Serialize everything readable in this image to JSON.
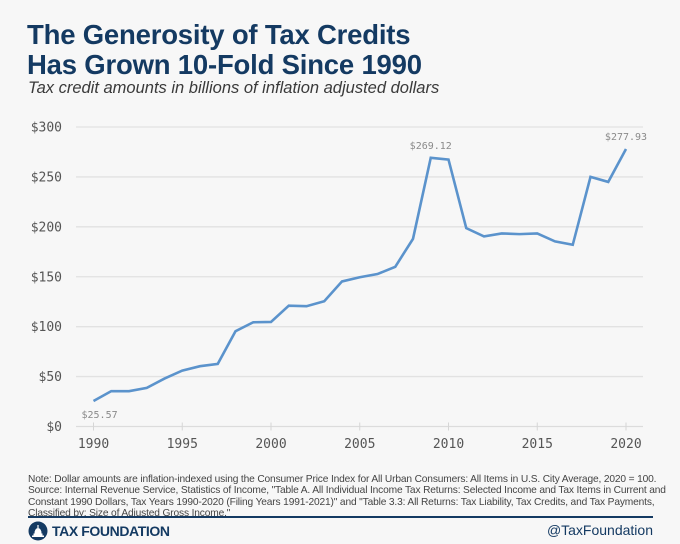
{
  "header": {
    "title_line1": "The Generosity of Tax Credits",
    "title_line2": "Has Grown 10-Fold Since 1990",
    "subtitle": "Tax credit amounts in billions of inflation adjusted dollars"
  },
  "chart_data": {
    "type": "line",
    "title": "The Generosity of Tax Credits Has Grown 10-Fold Since 1990",
    "subtitle": "Tax credit amounts in billions of inflation adjusted dollars",
    "xlabel": "",
    "ylabel": "",
    "x": [
      1990,
      1991,
      1992,
      1993,
      1994,
      1995,
      1996,
      1997,
      1998,
      1999,
      2000,
      2001,
      2002,
      2003,
      2004,
      2005,
      2006,
      2007,
      2008,
      2009,
      2010,
      2011,
      2012,
      2013,
      2014,
      2015,
      2016,
      2017,
      2018,
      2019,
      2020
    ],
    "series": [
      {
        "name": "Tax credit amounts",
        "color": "#5b93cc",
        "values": [
          25.57,
          35.4,
          35.4,
          38.7,
          48.0,
          56.0,
          60.4,
          62.7,
          95.4,
          104.4,
          104.7,
          121.0,
          120.5,
          125.5,
          145.3,
          149.5,
          152.7,
          160.0,
          188.0,
          269.12,
          267.4,
          198.7,
          190.4,
          193.4,
          192.7,
          193.4,
          185.4,
          182.0,
          250.0,
          245.0,
          277.93
        ]
      }
    ],
    "ylim": [
      0,
      300
    ],
    "xlim": [
      1990,
      2020
    ],
    "yticks": [
      0,
      50,
      100,
      150,
      200,
      250,
      300
    ],
    "ytick_labels": [
      "$0",
      "$50",
      "$100",
      "$150",
      "$200",
      "$250",
      "$300"
    ],
    "xticks": [
      1990,
      1995,
      2000,
      2005,
      2010,
      2015,
      2020
    ],
    "xtick_labels": [
      "1990",
      "1995",
      "2000",
      "2005",
      "2010",
      "2015",
      "2020"
    ],
    "annotations": [
      {
        "x": 1990,
        "y": 25.57,
        "text": "$25.57",
        "position": "below"
      },
      {
        "x": 2009,
        "y": 269.12,
        "text": "$269.12",
        "position": "above"
      },
      {
        "x": 2020,
        "y": 277.93,
        "text": "$277.93",
        "position": "above"
      }
    ],
    "grid": true,
    "legend": "none"
  },
  "footer": {
    "note_lines": [
      "Note: Dollar amounts are inflation-indexed using the Consumer Price Index for All Urban Consumers: All Items in U.S. City Average, 2020 = 100.",
      "Source: Internal Revenue Service, Statistics of Income, \"Table A.  All Individual Income Tax Returns: Selected Income and Tax Items in Current and",
      "Constant 1990 Dollars, Tax Years 1990-2020 (Filing Years 1991-2021)\" and \"Table 3.3:  All Returns: Tax Liability, Tax Credits, and Tax Payments,",
      "Classified by: Size of Adjusted Gross Income.\""
    ],
    "brand": "TAX FOUNDATION",
    "brand_icon": "capitol-dome-icon",
    "handle": "@TaxFoundation"
  },
  "colors": {
    "title": "#143a62",
    "line": "#5b93cc",
    "grid": "#e2e2e2",
    "background": "#f7f7f7"
  }
}
